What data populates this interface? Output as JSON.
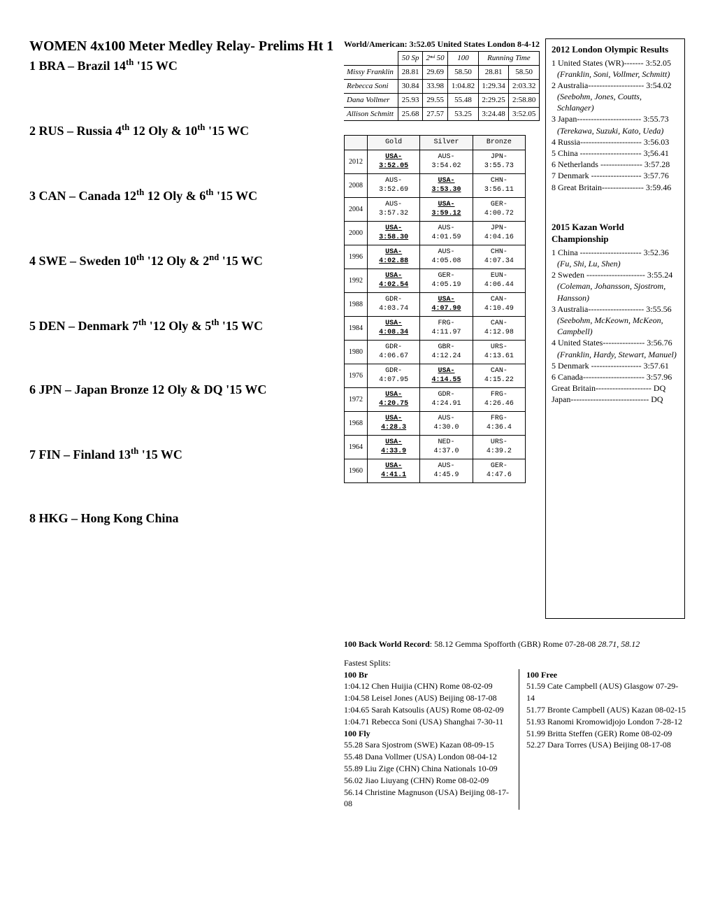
{
  "title": "WOMEN 4x100 Meter Medley Relay-   Prelims Ht 1",
  "entries": [
    {
      "text": "1 BRA – Brazil   14",
      "sup": "th",
      "tail": " '15 WC"
    },
    {
      "text": "2 RUS – Russia  4",
      "sup": "th",
      "tail": " 12 Oly & 10",
      "sup2": "th",
      "tail2": " '15 WC"
    },
    {
      "text": "3 CAN – Canada  12",
      "sup": "th",
      "tail": " 12 Oly & 6",
      "sup2": "th",
      "tail2": " '15 WC"
    },
    {
      "text": "4 SWE – Sweden   10",
      "sup": "th",
      "tail": " '12 Oly & 2",
      "sup2": "nd",
      "tail2": " '15 WC"
    },
    {
      "text": "5 DEN – Denmark  7",
      "sup": "th",
      "tail": " '12 Oly & 5",
      "sup2": "th",
      "tail2": " '15 WC"
    },
    {
      "text": "6 JPN – Japan   Bronze 12 Oly & DQ '15 WC",
      "sup": "",
      "tail": ""
    },
    {
      "text": "7 FIN – Finland    13",
      "sup": "th",
      "tail": " '15 WC"
    },
    {
      "text": "8 HKG – Hong Kong China",
      "sup": "",
      "tail": ""
    }
  ],
  "world_american": "World/American: 3:52.05 United States London 8-4-12",
  "splits_headers": [
    "",
    "50 Sp",
    "2ⁿᵈ 50",
    "100",
    "Running",
    "Time"
  ],
  "splits_rows": [
    [
      "Missy Franklin",
      "28.81",
      "29.69",
      "58.50",
      "28.81",
      "58.50"
    ],
    [
      "Rebecca Soni",
      "30.84",
      "33.98",
      "1:04.82",
      "1:29.34",
      "2:03.32"
    ],
    [
      "Dana Vollmer",
      "25.93",
      "29.55",
      "55.48",
      "2:29.25",
      "2:58.80"
    ],
    [
      "Allison Schmitt",
      "25.68",
      "27.57",
      "53.25",
      "3:24.48",
      "3:52.05"
    ]
  ],
  "medals_headers": [
    "",
    "Gold",
    "Silver",
    "Bronze"
  ],
  "medals_rows": [
    [
      "2012",
      "USA- 3:52.05",
      "AUS- 3:54.02",
      "JPN- 3:55.73"
    ],
    [
      "2008",
      "AUS- 3:52.69",
      "USA- 3:53.30",
      "CHN- 3:56.11"
    ],
    [
      "2004",
      "AUS- 3:57.32",
      "USA- 3:59.12",
      "GER- 4:00.72"
    ],
    [
      "2000",
      "USA- 3:58.30",
      "AUS- 4:01.59",
      "JPN- 4:04.16"
    ],
    [
      "1996",
      "USA- 4:02.88",
      "AUS- 4:05.08",
      "CHN- 4:07.34"
    ],
    [
      "1992",
      "USA- 4:02.54",
      "GER- 4:05.19",
      "EUN- 4:06.44"
    ],
    [
      "1988",
      "GDR- 4:03.74",
      "USA- 4:07.90",
      "CAN- 4:10.49"
    ],
    [
      "1984",
      "USA- 4:08.34",
      "FRG- 4:11.97",
      "CAN- 4:12.98"
    ],
    [
      "1980",
      "GDR- 4:06.67",
      "GBR- 4:12.24",
      "URS- 4:13.61"
    ],
    [
      "1976",
      "GDR- 4:07.95",
      "USA- 4:14.55",
      "CAN- 4:15.22"
    ],
    [
      "1972",
      "USA- 4:20.75",
      "GDR- 4:24.91",
      "FRG- 4:26.46"
    ],
    [
      "1968",
      "USA- 4:28.3",
      "AUS- 4:30.0",
      "FRG- 4:36.4"
    ],
    [
      "1964",
      "USA- 4:33.9",
      "NED- 4:37.0",
      "URS- 4:39.2"
    ],
    [
      "1960",
      "USA- 4:41.1",
      "AUS- 4:45.9",
      "GER- 4:47.6"
    ]
  ],
  "london2012": {
    "title": "2012 London Olympic Results",
    "lines": [
      {
        "t": "1 United States (WR)------- 3:52.05"
      },
      {
        "t": "(Franklin, Soni, Vollmer, Schmitt)",
        "it": true
      },
      {
        "t": "2 Australia-------------------- 3:54.02"
      },
      {
        "t": "(Seebohm, Jones, Coutts, Schlanger)",
        "it": true
      },
      {
        "t": "3 Japan----------------------- 3:55.73"
      },
      {
        "t": "(Terekawa, Suzuki, Kato, Ueda)",
        "it": true
      },
      {
        "t": "4 Russia---------------------- 3:56.03"
      },
      {
        "t": "5 China ---------------------- 3;56.41"
      },
      {
        "t": "6 Netherlands --------------- 3:57.28"
      },
      {
        "t": "7 Denmark ------------------ 3:57.76"
      },
      {
        "t": "8 Great Britain--------------- 3:59.46"
      }
    ]
  },
  "kazan2015": {
    "title": "2015 Kazan World Championship",
    "lines": [
      {
        "t": "1 China ---------------------- 3:52.36"
      },
      {
        "t": "(Fu, Shi, Lu, Shen)",
        "it": true
      },
      {
        "t": "2 Sweden --------------------- 3:55.24"
      },
      {
        "t": "(Coleman, Johansson, Sjostrom, Hansson)",
        "it": true
      },
      {
        "t": "3 Australia-------------------- 3:55.56"
      },
      {
        "t": "(Seebohm, McKeown, McKeon, Campbell)",
        "it": true
      },
      {
        "t": "4 United States--------------- 3:56.76"
      },
      {
        "t": "(Franklin, Hardy, Stewart, Manuel)",
        "it": true
      },
      {
        "t": "5 Denmark ------------------ 3:57.61"
      },
      {
        "t": "6 Canada---------------------- 3:57.96"
      },
      {
        "t": "   Great Britain-------------------- DQ"
      },
      {
        "t": "   Japan---------------------------- DQ"
      }
    ]
  },
  "back_wr": {
    "label": "100 Back World Record",
    "text": ": 58.12 Gemma Spofforth (GBR) Rome 07-28-08  ",
    "splits": "28.71, 58.12"
  },
  "fastest_title": "Fastest Splits:",
  "fastest": {
    "br": {
      "title": "100 Br",
      "lines": [
        "1:04.12 Chen Huijia (CHN) Rome 08-02-09",
        "1:04.58 Leisel Jones (AUS) Beijing 08-17-08",
        "1:04.65 Sarah Katsoulis (AUS) Rome 08-02-09",
        "1:04.71 Rebecca Soni (USA) Shanghai 7-30-11"
      ]
    },
    "fly": {
      "title": "100 Fly",
      "lines": [
        "55.28 Sara Sjostrom (SWE) Kazan 08-09-15",
        "55.48 Dana Vollmer (USA) London 08-04-12",
        "55.89 Liu Zige (CHN) China Nationals 10-09",
        "56.02 Jiao Liuyang (CHN) Rome 08-02-09",
        "56.14 Christine Magnuson (USA) Beijing 08-17-08"
      ]
    },
    "free": {
      "title": "100 Free",
      "lines": [
        "51.59 Cate Campbell (AUS) Glasgow 07-29-14",
        "51.77 Bronte Campbell (AUS) Kazan 08-02-15",
        "51.93 Ranomi Kromowidjojo London 7-28-12",
        "51.99 Britta Steffen (GER) Rome 08-02-09",
        "52.27 Dara Torres (USA) Beijing 08-17-08"
      ]
    }
  }
}
